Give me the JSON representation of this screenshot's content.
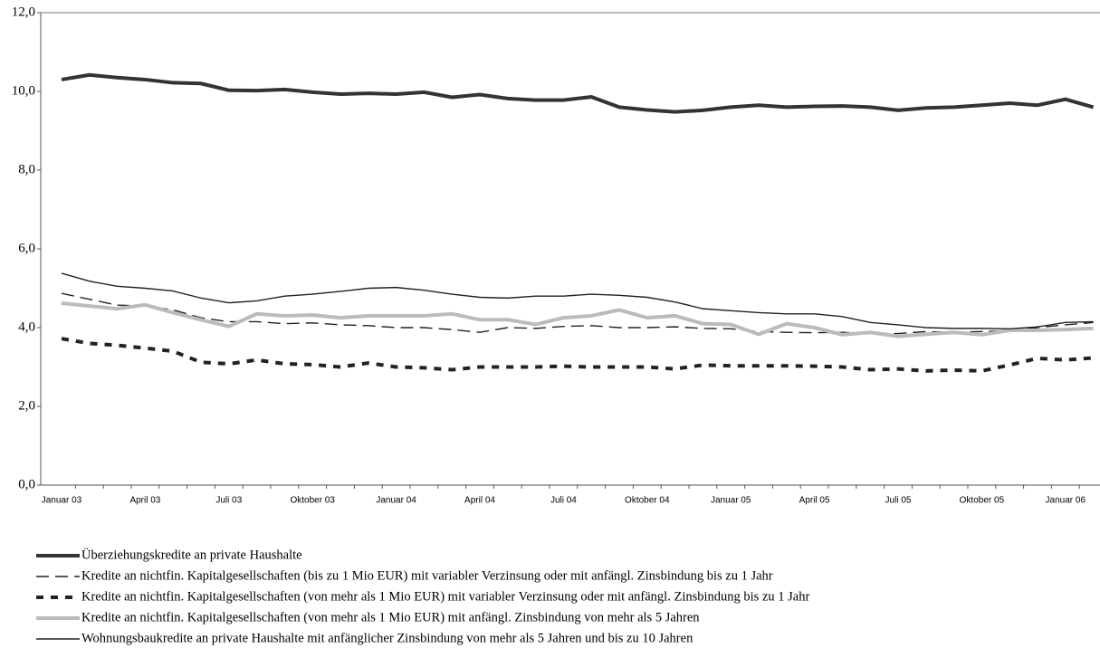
{
  "chart_data": {
    "type": "line",
    "categories": [
      "Januar 03",
      null,
      null,
      "April 03",
      null,
      null,
      "Juli 03",
      null,
      null,
      "Oktober 03",
      null,
      null,
      "Januar 04",
      null,
      null,
      "April 04",
      null,
      null,
      "Juli 04",
      null,
      null,
      "Oktober 04",
      null,
      null,
      "Januar 05",
      null,
      null,
      "April 05",
      null,
      null,
      "Juli 05",
      null,
      null,
      "Oktober 05",
      null,
      null,
      "Januar 06",
      null
    ],
    "ylim": [
      0,
      12
    ],
    "yticks": [
      {
        "value": 0,
        "label": "0,0"
      },
      {
        "value": 2,
        "label": "2,0"
      },
      {
        "value": 4,
        "label": "4,0"
      },
      {
        "value": 6,
        "label": "6,0"
      },
      {
        "value": 8,
        "label": "8,0"
      },
      {
        "value": 10,
        "label": "10,0"
      },
      {
        "value": 12,
        "label": "12,0"
      }
    ],
    "grid": false,
    "legend": "bottom",
    "series": [
      {
        "name": "Überziehungskredite an private Haushalte",
        "color": "#333333",
        "line_style": "solid",
        "values": [
          10.3,
          10.42,
          10.35,
          10.3,
          10.22,
          10.2,
          10.03,
          10.02,
          10.05,
          9.98,
          9.93,
          9.95,
          9.93,
          9.98,
          9.85,
          9.92,
          9.82,
          9.78,
          9.78,
          9.86,
          9.6,
          9.53,
          9.48,
          9.52,
          9.6,
          9.65,
          9.6,
          9.62,
          9.63,
          9.6,
          9.52,
          9.58,
          9.6,
          9.65,
          9.7,
          9.65,
          9.8,
          9.6
        ]
      },
      {
        "name": "Kredite an nichtfin. Kapitalgesellschaften (bis zu 1 Mio EUR) mit variabler Verzinsung oder mit anfängl. Zinsbindung bis zu 1 Jahr",
        "color": "#222222",
        "line_style": "dashed",
        "values": [
          4.87,
          4.72,
          4.57,
          4.55,
          4.45,
          4.25,
          4.15,
          4.15,
          4.1,
          4.12,
          4.07,
          4.05,
          4.0,
          4.0,
          3.95,
          3.88,
          4.0,
          3.98,
          4.03,
          4.05,
          4.0,
          4.0,
          4.02,
          3.98,
          3.97,
          3.9,
          3.88,
          3.87,
          3.88,
          3.85,
          3.85,
          3.9,
          3.88,
          3.9,
          3.93,
          4.0,
          4.07,
          4.13
        ]
      },
      {
        "name": "Kredite an nichtfin. Kapitalgesellschaften (von mehr als 1 Mio EUR) mit variabler Verzinsung oder mit anfängl. Zinsbindung bis zu 1 Jahr",
        "color": "#222222",
        "line_style": "dotted",
        "values": [
          3.72,
          3.6,
          3.55,
          3.48,
          3.4,
          3.12,
          3.08,
          3.18,
          3.08,
          3.06,
          3.0,
          3.1,
          3.0,
          2.98,
          2.93,
          3.0,
          3.0,
          3.0,
          3.02,
          3.0,
          3.0,
          3.0,
          2.95,
          3.05,
          3.03,
          3.03,
          3.03,
          3.02,
          3.0,
          2.93,
          2.95,
          2.9,
          2.92,
          2.9,
          3.05,
          3.22,
          3.18,
          3.23
        ]
      },
      {
        "name": "Kredite an nichtfin. Kapitalgesellschaften (von mehr als 1 Mio EUR) mit anfängl. Zinsbindung von mehr als 5 Jahren",
        "color": "#bbbbbb",
        "line_style": "solid",
        "values": [
          4.62,
          4.55,
          4.48,
          4.58,
          4.38,
          4.2,
          4.03,
          4.35,
          4.3,
          4.32,
          4.25,
          4.3,
          4.3,
          4.3,
          4.35,
          4.2,
          4.2,
          4.08,
          4.25,
          4.3,
          4.45,
          4.25,
          4.3,
          4.1,
          4.08,
          3.83,
          4.1,
          4.0,
          3.82,
          3.88,
          3.78,
          3.83,
          3.88,
          3.82,
          3.93,
          3.93,
          3.95,
          3.98
        ]
      },
      {
        "name": "Wohnungsbaukredite an private Haushalte mit anfänglicher Zinsbindung von mehr als 5 Jahren und bis zu 10 Jahren",
        "color": "#222222",
        "line_style": "solid",
        "values": [
          5.38,
          5.18,
          5.05,
          5.0,
          4.93,
          4.75,
          4.63,
          4.68,
          4.8,
          4.85,
          4.92,
          5.0,
          5.02,
          4.95,
          4.85,
          4.77,
          4.75,
          4.8,
          4.8,
          4.85,
          4.82,
          4.77,
          4.65,
          4.48,
          4.43,
          4.38,
          4.35,
          4.35,
          4.28,
          4.13,
          4.07,
          4.0,
          3.98,
          3.98,
          3.97,
          4.02,
          4.13,
          4.15
        ]
      }
    ]
  }
}
